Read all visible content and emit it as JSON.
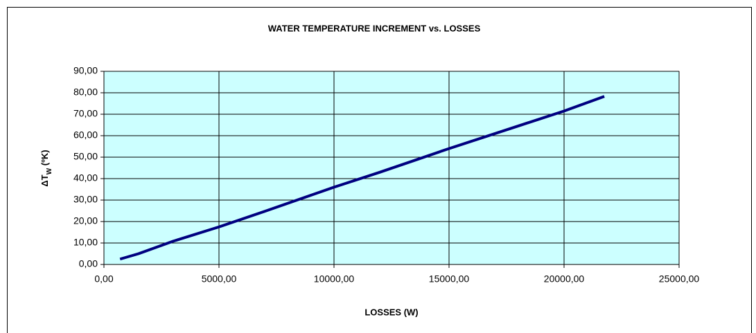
{
  "chart_data": {
    "type": "line",
    "title": "WATER TEMPERATURE INCREMENT vs. LOSSES",
    "x_label": "LOSSES (W)",
    "y_label": [
      "ΔT",
      "W",
      " (ºK)"
    ],
    "x": [
      700,
      1500,
      3000,
      5000,
      7000,
      10000,
      12000,
      15000,
      18000,
      20000,
      21750
    ],
    "series": [
      {
        "color": "#000080",
        "values": [
          2.5,
          5,
          10.8,
          17.5,
          24.8,
          36,
          43,
          54,
          64.5,
          71.5,
          78.3
        ]
      }
    ],
    "xlim": [
      0,
      25000
    ],
    "xticks": [
      {
        "value": 0,
        "label": "0,00"
      },
      {
        "value": 5000,
        "label": "5000,00"
      },
      {
        "value": 10000,
        "label": "10000,00"
      },
      {
        "value": 15000,
        "label": "15000,00"
      },
      {
        "value": 20000,
        "label": "20000,00"
      },
      {
        "value": 25000,
        "label": "25000,00"
      }
    ],
    "ylim": [
      0,
      90
    ],
    "yticks": [
      {
        "value": 0,
        "label": "0,00"
      },
      {
        "value": 10,
        "label": "10,00"
      },
      {
        "value": 20,
        "label": "20,00"
      },
      {
        "value": 30,
        "label": "30,00"
      },
      {
        "value": 40,
        "label": "40,00"
      },
      {
        "value": 50,
        "label": "50,00"
      },
      {
        "value": 60,
        "label": "60,00"
      },
      {
        "value": 70,
        "label": "70,00"
      },
      {
        "value": 80,
        "label": "80,00"
      },
      {
        "value": 90,
        "label": "90,00"
      }
    ],
    "grid": true,
    "plot_background": "#ccffff"
  }
}
